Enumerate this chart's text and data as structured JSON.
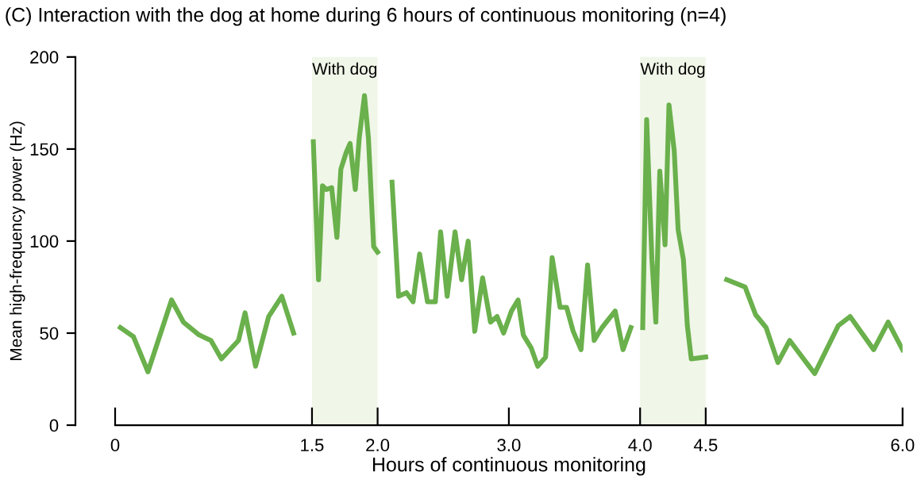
{
  "chart_data": {
    "type": "line",
    "title": "(C) Interaction with the dog at home during 6 hours of continuous monitoring (n=4)",
    "xlabel": "Hours of continuous monitoring",
    "ylabel": "Mean high-frequency power (Hz)",
    "x": [
      0.04,
      0.14,
      0.25,
      0.43,
      0.52,
      0.64,
      0.73,
      0.81,
      0.94,
      0.99,
      1.07,
      1.17,
      1.27,
      1.36,
      1.5,
      1.51,
      1.55,
      1.58,
      1.61,
      1.65,
      1.69,
      1.72,
      1.76,
      1.79,
      1.83,
      1.86,
      1.9,
      1.93,
      1.97,
      2.0,
      2.05,
      2.11,
      2.16,
      2.22,
      2.27,
      2.32,
      2.38,
      2.44,
      2.48,
      2.53,
      2.59,
      2.64,
      2.69,
      2.74,
      2.8,
      2.86,
      2.91,
      2.96,
      3.02,
      3.07,
      3.11,
      3.17,
      3.22,
      3.28,
      3.33,
      3.39,
      3.44,
      3.49,
      3.55,
      3.6,
      3.65,
      3.71,
      3.81,
      3.87,
      3.93,
      3.97,
      4.02,
      4.05,
      4.09,
      4.12,
      4.15,
      4.19,
      4.22,
      4.26,
      4.29,
      4.33,
      4.36,
      4.39,
      4.5,
      4.58,
      4.66,
      4.8,
      4.88,
      4.96,
      5.05,
      5.14,
      5.33,
      5.51,
      5.6,
      5.78,
      5.89,
      6.0
    ],
    "series": [
      {
        "color": "#6ab04c",
        "values": [
          53,
          48,
          29,
          68,
          56,
          49,
          46,
          36,
          46,
          61,
          32,
          59,
          70,
          50,
          null,
          154,
          79,
          130,
          128,
          129,
          102,
          139,
          148,
          153,
          128,
          156,
          179,
          156,
          97,
          94,
          null,
          132,
          70,
          72,
          67,
          93,
          67,
          67,
          105,
          70,
          105,
          79,
          100,
          51,
          80,
          56,
          59,
          50,
          62,
          68,
          49,
          42,
          32,
          37,
          91,
          64,
          64,
          51,
          41,
          87,
          46,
          53,
          62,
          41,
          53,
          null,
          53,
          166,
          90,
          56,
          138,
          98,
          174,
          149,
          106,
          90,
          54,
          36,
          37,
          null,
          79,
          75,
          60,
          53,
          34,
          46,
          28,
          54,
          59,
          41,
          56,
          41
        ]
      }
    ],
    "bands": [
      {
        "axis": "x",
        "from": 1.5,
        "to": 2.0,
        "label": "With dog",
        "color": "#f0f6e8"
      },
      {
        "axis": "x",
        "from": 4.0,
        "to": 4.5,
        "label": "With dog",
        "color": "#f0f6e8"
      }
    ],
    "xlim": [
      0,
      6
    ],
    "xticks": [
      0,
      {
        "value": 1.5,
        "label": "1.5"
      },
      {
        "value": 2.0,
        "label": "2.0"
      },
      {
        "value": 3.0,
        "label": "3.0"
      },
      {
        "value": 4.0,
        "label": "4.0"
      },
      {
        "value": 4.5,
        "label": "4.5"
      },
      {
        "value": 6.0,
        "label": "6.0"
      }
    ],
    "ylim": [
      0,
      200
    ],
    "yticks": [
      0,
      50,
      100,
      150,
      200
    ],
    "grid": false,
    "legend": false,
    "marker": "none",
    "line_style": "solid"
  }
}
